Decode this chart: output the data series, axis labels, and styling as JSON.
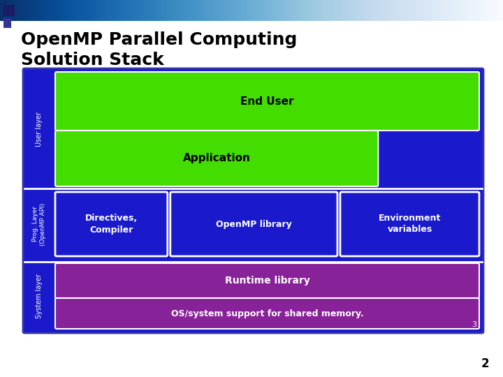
{
  "title_line1": "OpenMP Parallel Computing",
  "title_line2": "Solution Stack",
  "title_fontsize": 18,
  "title_color": "#000000",
  "bg_color": "#ffffff",
  "slide_number": "2",
  "main_bg": "#1a1acc",
  "diagram": {
    "user_layer_label": "User layer",
    "prog_layer_label": "Prog. Layer\n(OpenMP API)",
    "system_layer_label": "System layer",
    "end_user_color": "#44dd00",
    "end_user_text": "End User",
    "application_color": "#44dd00",
    "application_text": "Application",
    "directives_text": "Directives,\nCompiler",
    "openmp_lib_text": "OpenMP library",
    "env_var_text": "Environment\nvariables",
    "runtime_color": "#882299",
    "runtime_text": "Runtime library",
    "os_color": "#882299",
    "os_text": "OS/system support for shared memory.",
    "number_text": "3"
  }
}
